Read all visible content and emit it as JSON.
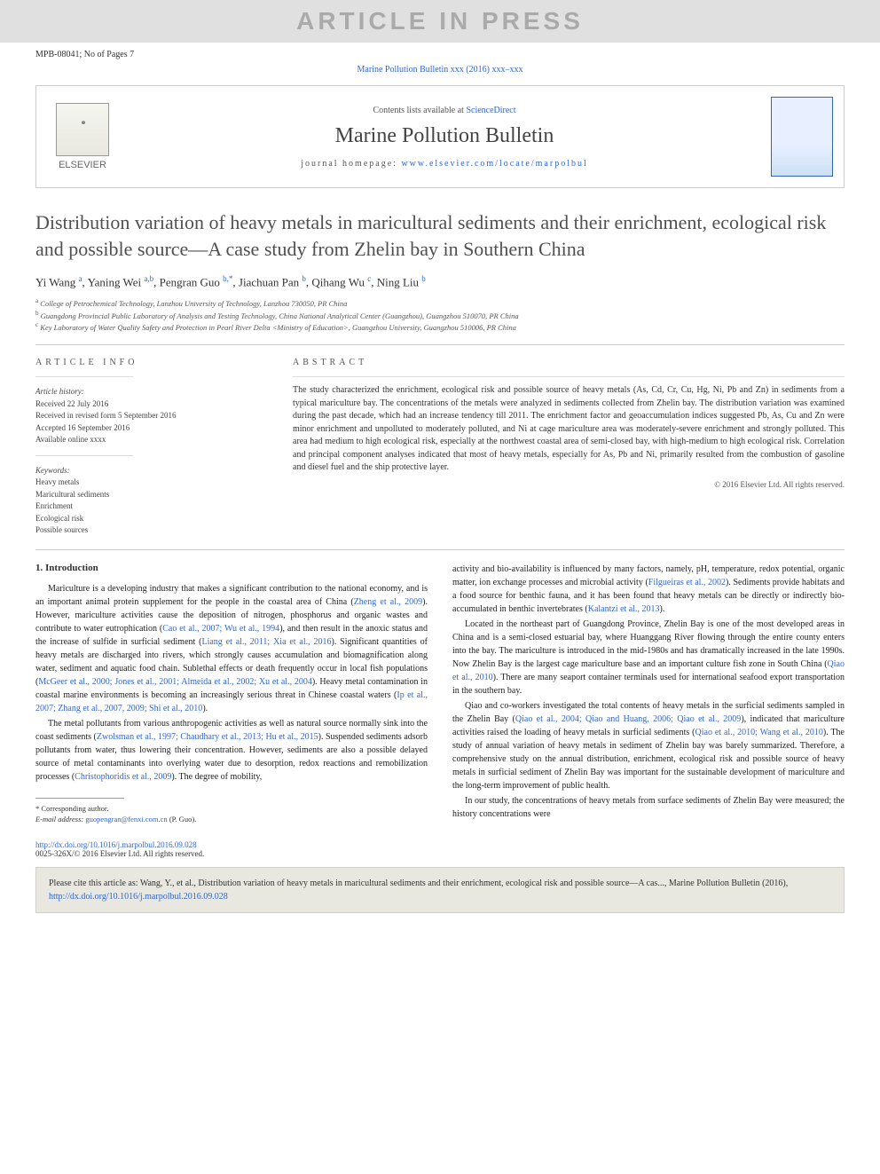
{
  "watermark": "ARTICLE IN PRESS",
  "docid": "MPB-08041; No of Pages 7",
  "journal_ref_link": "Marine Pollution Bulletin xxx (2016) xxx–xxx",
  "header": {
    "contents_prefix": "Contents lists available at ",
    "contents_link": "ScienceDirect",
    "journal_name": "Marine Pollution Bulletin",
    "homepage_prefix": "journal homepage: ",
    "homepage_url": "www.elsevier.com/locate/marpolbul",
    "publisher": "ELSEVIER"
  },
  "title": "Distribution variation of heavy metals in maricultural sediments and their enrichment, ecological risk and possible source—A case study from Zhelin bay in Southern China",
  "authors_html": "Yi Wang <sup>a</sup>, Yaning Wei <sup>a,b</sup>, Pengran Guo <sup>b,*</sup>, Jiachuan Pan <sup>b</sup>, Qihang Wu <sup>c</sup>, Ning Liu <sup>b</sup>",
  "affiliations": {
    "a": "College of Petrochemical Technology, Lanzhou University of Technology, Lanzhou 730050, PR China",
    "b": "Guangdong Provincial Public Laboratory of Analysis and Testing Technology, China National Analytical Center (Guangzhou), Guangzhou 510070, PR China",
    "c": "Key Laboratory of Water Quality Safety and Protection in Pearl River Delta <Ministry of Education>, Guangzhou University, Guangzhou 510006, PR China"
  },
  "article_info": {
    "heading": "ARTICLE INFO",
    "history_label": "Article history:",
    "received": "Received 22 July 2016",
    "revised": "Received in revised form 5 September 2016",
    "accepted": "Accepted 16 September 2016",
    "online": "Available online xxxx",
    "keywords_label": "Keywords:",
    "keywords": [
      "Heavy metals",
      "Maricultural sediments",
      "Enrichment",
      "Ecological risk",
      "Possible sources"
    ]
  },
  "abstract": {
    "heading": "ABSTRACT",
    "text": "The study characterized the enrichment, ecological risk and possible source of heavy metals (As, Cd, Cr, Cu, Hg, Ni, Pb and Zn) in sediments from a typical mariculture bay. The concentrations of the metals were analyzed in sediments collected from Zhelin bay. The distribution variation was examined during the past decade, which had an increase tendency till 2011. The enrichment factor and geoaccumulation indices suggested Pb, As, Cu and Zn were minor enrichment and unpolluted to moderately polluted, and Ni at cage mariculture area was moderately-severe enrichment and strongly polluted. This area had medium to high ecological risk, especially at the northwest coastal area of semi-closed bay, with high-medium to high ecological risk. Correlation and principal component analyses indicated that most of heavy metals, especially for As, Pb and Ni, primarily resulted from the combustion of gasoline and diesel fuel and the ship protective layer.",
    "copyright": "© 2016 Elsevier Ltd. All rights reserved."
  },
  "body": {
    "section_title": "1. Introduction",
    "col1_paras": [
      "Mariculture is a developing industry that makes a significant contribution to the national economy, and is an important animal protein supplement for the people in the coastal area of China (<a>Zheng et al., 2009</a>). However, mariculture activities cause the deposition of nitrogen, phosphorus and organic wastes and contribute to water eutrophication (<a>Cao et al., 2007; Wu et al., 1994</a>), and then result in the anoxic status and the increase of sulfide in surficial sediment (<a>Liang et al., 2011; Xia et al., 2016</a>). Significant quantities of heavy metals are discharged into rivers, which strongly causes accumulation and biomagnification along water, sediment and aquatic food chain. Sublethal effects or death frequently occur in local fish populations (<a>McGeer et al., 2000; Jones et al., 2001; Almeida et al., 2002; Xu et al., 2004</a>). Heavy metal contamination in coastal marine environments is becoming an increasingly serious threat in Chinese coastal waters (<a>Ip et al., 2007; Zhang et al., 2007, 2009; Shi et al., 2010</a>).",
      "The metal pollutants from various anthropogenic activities as well as natural source normally sink into the coast sediments (<a>Zwolsman et al., 1997; Chaudhary et al., 2013; Hu et al., 2015</a>). Suspended sediments adsorb pollutants from water, thus lowering their concentration. However, sediments are also a possible delayed source of metal contaminants into overlying water due to desorption, redox reactions and remobilization processes (<a>Christophoridis et al., 2009</a>). The degree of mobility,"
    ],
    "col2_paras": [
      "activity and bio-availability is influenced by many factors, namely, pH, temperature, redox potential, organic matter, ion exchange processes and microbial activity (<a>Filgueiras et al., 2002</a>). Sediments provide habitats and a food source for benthic fauna, and it has been found that heavy metals can be directly or indirectly bio-accumulated in benthic invertebrates (<a>Kalantzi et al., 2013</a>).",
      "Located in the northeast part of Guangdong Province, Zhelin Bay is one of the most developed areas in China and is a semi-closed estuarial bay, where Huanggang River flowing through the entire county enters into the bay. The mariculture is introduced in the mid-1980s and has dramatically increased in the late 1990s. Now Zhelin Bay is the largest cage mariculture base and an important culture fish zone in South China (<a>Qiao et al., 2010</a>). There are many seaport container terminals used for international seafood export transportation in the southern bay.",
      "Qiao and co-workers investigated the total contents of heavy metals in the surficial sediments sampled in the Zhelin Bay (<a>Qiao et al., 2004; Qiao and Huang, 2006; Qiao et al., 2009</a>), indicated that mariculture activities raised the loading of heavy metals in surficial sediments (<a>Qiao et al., 2010; Wang et al., 2010</a>). The study of annual variation of heavy metals in sediment of Zhelin bay was barely summarized. Therefore, a comprehensive study on the annual distribution, enrichment, ecological risk and possible source of heavy metals in surficial sediment of Zhelin Bay was important for the sustainable development of mariculture and the long-term improvement of public health.",
      "In our study, the concentrations of heavy metals from surface sediments of Zhelin Bay were measured; the history concentrations were"
    ]
  },
  "corresponding": {
    "label": "* Corresponding author.",
    "email_label": "E-mail address:",
    "email": "guopengran@fenxi.com.cn",
    "email_suffix": "(P. Guo)."
  },
  "doi": {
    "url": "http://dx.doi.org/10.1016/j.marpolbul.2016.09.028",
    "issn_copyright": "0025-326X/© 2016 Elsevier Ltd. All rights reserved."
  },
  "citation_box": {
    "prefix": "Please cite this article as: Wang, Y., et al., Distribution variation of heavy metals in maricultural sediments and their enrichment, ecological risk and possible source—A cas..., Marine Pollution Bulletin (2016), ",
    "link": "http://dx.doi.org/10.1016/j.marpolbul.2016.09.028"
  },
  "colors": {
    "link": "#3366cc",
    "watermark_bg": "#e0e0e0",
    "watermark_fg": "#aaaaaa",
    "citation_bg": "#e8e8e0"
  }
}
